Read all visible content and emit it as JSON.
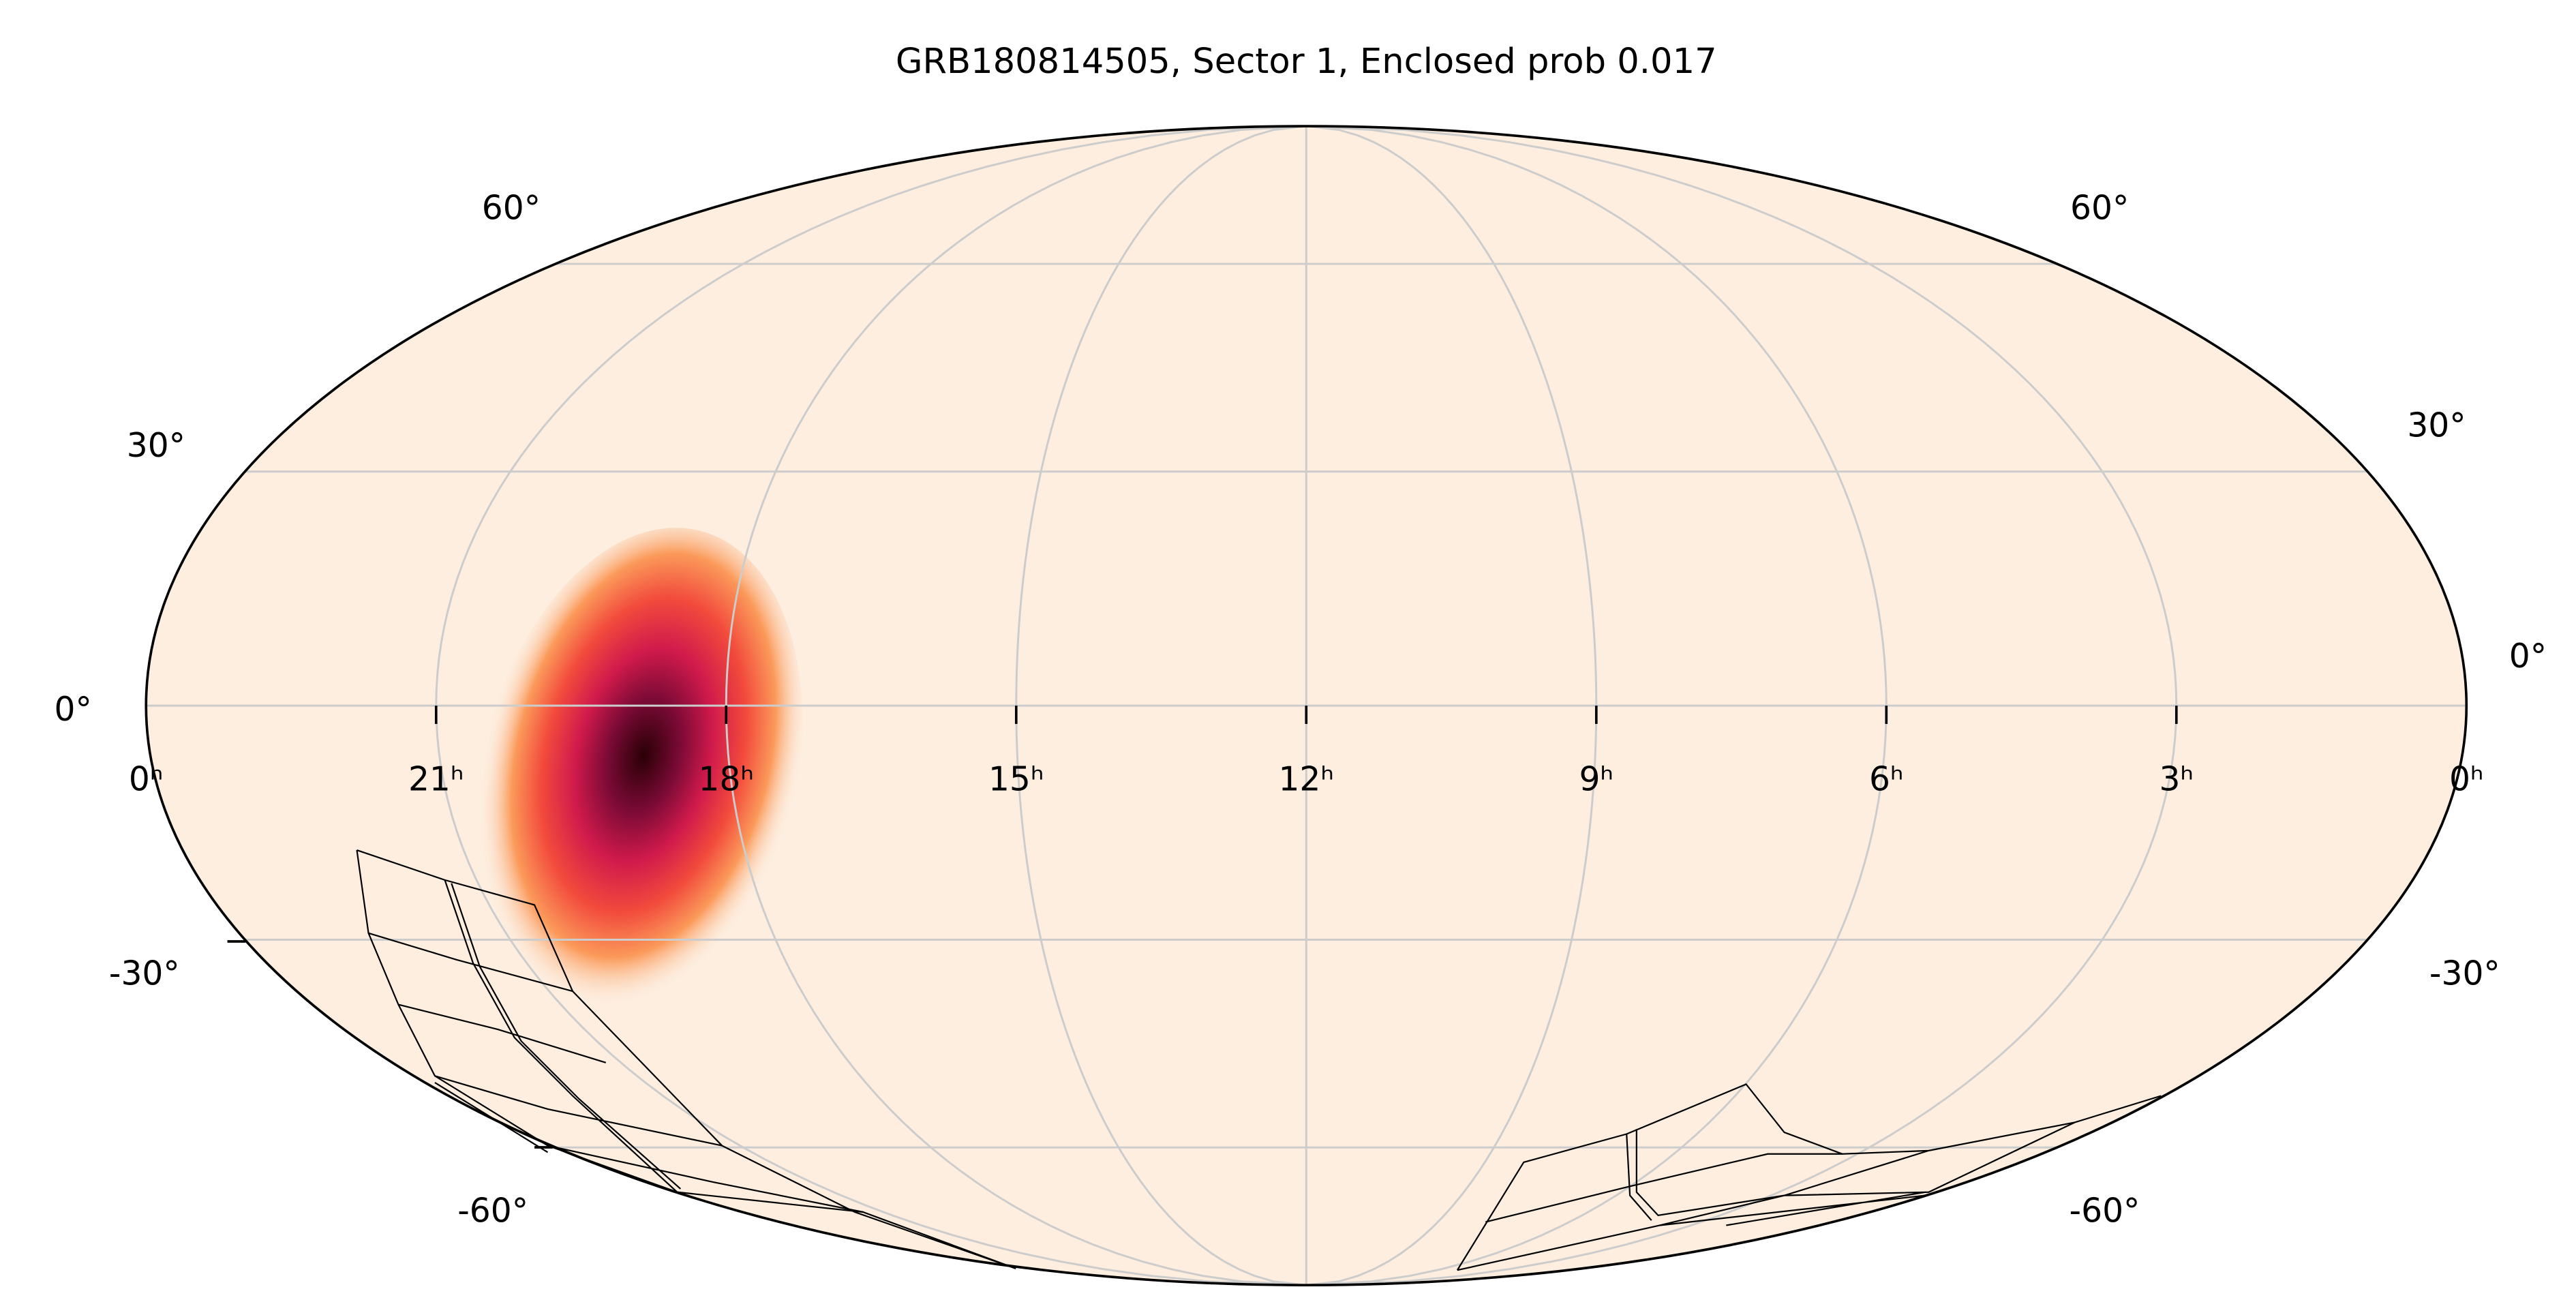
{
  "title": "GRB180814505, Sector 1, Enclosed prob 0.017",
  "ra_labels": [
    "0ʰ",
    "21ʰ",
    "18ʰ",
    "15ʰ",
    "12ʰ",
    "9ʰ",
    "6ʰ",
    "3ʰ",
    "0ʰ"
  ],
  "dec_labels_left": [
    "60°",
    "30°",
    "0°",
    "-30°",
    "-60°"
  ],
  "dec_labels_right": [
    "60°",
    "30°",
    "0°",
    "-30°",
    "-60°"
  ]
}
